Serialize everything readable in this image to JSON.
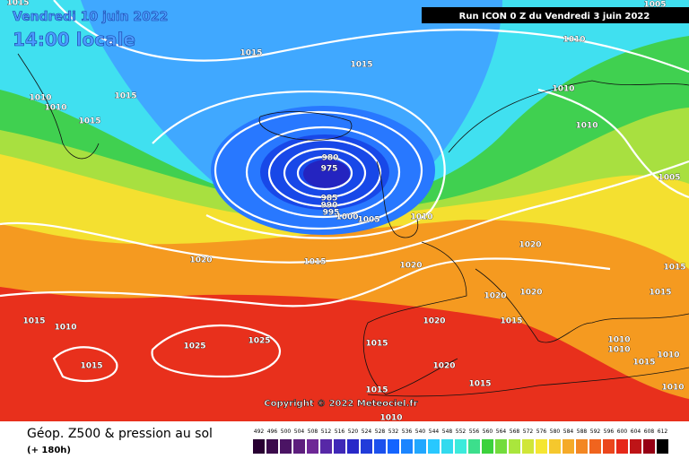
{
  "header": {
    "date": "Vendredi 10 juin 2022",
    "time": "14:00 locale",
    "run": "Run ICON 0 Z du Vendredi 3 juin 2022"
  },
  "copyright": "Copyright © 2022 Meteociel.fr",
  "isobar_labels": [
    1015,
    1005,
    1010,
    1015,
    1015,
    1010,
    1010,
    1015,
    1010,
    1015,
    1010,
    980,
    975,
    1005,
    985,
    990,
    995,
    1000,
    1005,
    1010,
    1020,
    1020,
    1015,
    1020,
    1015,
    1020,
    1020,
    1015,
    1015,
    1015,
    1010,
    1020,
    1025,
    1025,
    1015,
    1010,
    1010,
    1015,
    1020,
    1015,
    1010,
    1015,
    1015,
    1010,
    1010
  ],
  "legend": {
    "title": "Géop. Z500 & pression au sol",
    "lead": "(+ 180h)",
    "scale": [
      492,
      496,
      500,
      504,
      508,
      512,
      516,
      520,
      524,
      528,
      532,
      536,
      540,
      544,
      548,
      552,
      556,
      560,
      564,
      568,
      572,
      576,
      580,
      584,
      588,
      592,
      596,
      600,
      604,
      608,
      612
    ]
  }
}
